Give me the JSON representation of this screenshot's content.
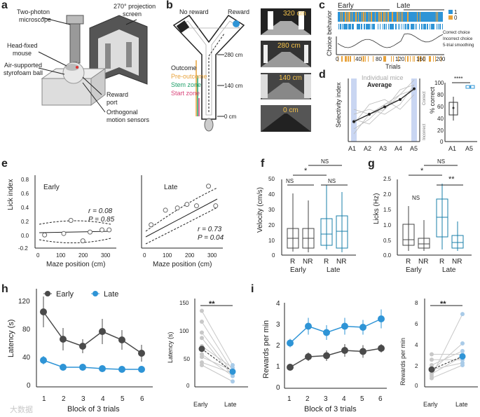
{
  "panel_labels": [
    "a",
    "b",
    "c",
    "d",
    "e",
    "f",
    "g",
    "h",
    "i"
  ],
  "colors": {
    "early": "#4a4a4a",
    "late": "#2e94d6",
    "boxblue": "#1a7fa8",
    "orange": "#e8a23a",
    "gray": "#bbbbbb",
    "blue_band": "#c9d6f2"
  },
  "panel_a": {
    "labels": [
      "Two-photon",
      "microscope",
      "270° projection",
      "screen",
      "Head-fixed",
      "mouse",
      "Air-supported",
      "styrofoam ball",
      "Reward",
      "port",
      "Orthogonal",
      "motion sensors"
    ]
  },
  "panel_b": {
    "no_reward": "No reward",
    "reward": "Reward",
    "zones": [
      {
        "label": "Outcome",
        "color": "#222222"
      },
      {
        "label": "Pre-outcome",
        "color": "#e8a23a"
      },
      {
        "label": "Stem zone",
        "color": "#22a06b"
      },
      {
        "label": "Start zone",
        "color": "#d9447a"
      }
    ],
    "distances": [
      "280 cm",
      "140 cm",
      "0 cm"
    ],
    "views": [
      "320 cm",
      "280 cm",
      "140 cm",
      "0 cm"
    ]
  },
  "panel_c": {
    "ylabel": "Choice behavior",
    "xlabel": "Trials",
    "phase_early": "Early",
    "phase_late": "Late",
    "legend_1": "1",
    "legend_0": "0",
    "legend_lines": [
      "Correct choice",
      "Incorrect choice",
      "5-trial smoothing"
    ],
    "xticks": [
      "0",
      "40",
      "80",
      "120",
      "160",
      "200"
    ]
  },
  "panel_d": {
    "ylabel": "Selectivity index",
    "xticks": [
      "A1",
      "A2",
      "A3",
      "A4",
      "A5"
    ],
    "legend_mice": "Individual mice",
    "legend_avg": "Average",
    "correct": "Correct",
    "incorrect": "Incorrect",
    "inset_ylabel": "% correct",
    "inset_yticks": [
      "100",
      "80",
      "60",
      "40",
      "20",
      "0"
    ],
    "inset_xticks": [
      "A1",
      "A5"
    ],
    "inset_sig": "****"
  },
  "panel_e": {
    "ylabel": "Lick index",
    "xlabel": "Maze position (cm)",
    "yticks": [
      "0.8",
      "0.6",
      "0.4",
      "0.2",
      "0.0",
      "-0.2"
    ],
    "xticks": [
      "0",
      "100",
      "200",
      "300"
    ],
    "early": {
      "title": "Early",
      "r": "r = 0.08",
      "p": "P = 0.85"
    },
    "late": {
      "title": "Late",
      "r": "r = 0.73",
      "p": "P = 0.04"
    }
  },
  "panel_f": {
    "ylabel": "Velocity (cm/s)",
    "yticks": [
      "50",
      "40",
      "30",
      "20",
      "10",
      "0"
    ],
    "groups": [
      "R",
      "NR",
      "R",
      "NR"
    ],
    "phase": [
      "Early",
      "Late"
    ],
    "sig": [
      "NS",
      "*",
      "NS",
      "NS"
    ]
  },
  "panel_g": {
    "ylabel": "Licks (Hz)",
    "yticks": [
      "2.5",
      "2.0",
      "1.5",
      "1.0",
      "0.5",
      "0.0"
    ],
    "groups": [
      "R",
      "NR",
      "R",
      "NR"
    ],
    "phase": [
      "Early",
      "Late"
    ],
    "sig": [
      "NS",
      "*",
      "NS",
      "**"
    ]
  },
  "panel_h": {
    "ylabel": "Latency (s)",
    "xlabel": "Block of 3 trials",
    "yticks": [
      "120",
      "80",
      "40",
      "0"
    ],
    "xticks": [
      "1",
      "2",
      "3",
      "4",
      "5",
      "6"
    ],
    "legend_early": "Early",
    "legend_late": "Late",
    "inset_ylabel": "Latency (s)",
    "inset_yticks": [
      "150",
      "100",
      "50",
      "0"
    ],
    "inset_xticks": [
      "Early",
      "Late"
    ],
    "inset_sig": "**"
  },
  "panel_i": {
    "ylabel": "Rewards per min",
    "xlabel": "Block of 3 trials",
    "yticks": [
      "4",
      "3",
      "2",
      "1",
      "0"
    ],
    "xticks": [
      "1",
      "2",
      "3",
      "4",
      "5",
      "6"
    ],
    "inset_ylabel": "Rewards per min",
    "inset_yticks": [
      "8",
      "6",
      "4",
      "2",
      "0"
    ],
    "inset_xticks": [
      "Early",
      "Late"
    ],
    "inset_sig": "**"
  },
  "watermark": "大数据",
  "chart_data": [
    {
      "type": "line",
      "panel": "d",
      "x": [
        "A1",
        "A2",
        "A3",
        "A4",
        "A5"
      ],
      "series": [
        {
          "name": "Average",
          "values": [
            -0.05,
            0.1,
            0.25,
            0.4,
            0.62
          ]
        }
      ],
      "ylabel": "Selectivity index"
    },
    {
      "type": "scatter",
      "panel": "e",
      "title": "Early",
      "xlabel": "Maze position (cm)",
      "ylabel": "Lick index",
      "x": [
        40,
        120,
        150,
        200,
        230,
        280,
        310
      ],
      "y": [
        -0.02,
        0.0,
        0.18,
        -0.1,
        0.02,
        0.05,
        0.05
      ],
      "xlim": [
        0,
        340
      ],
      "ylim": [
        -0.2,
        0.8
      ]
    },
    {
      "type": "scatter",
      "panel": "e",
      "title": "Late",
      "xlabel": "Maze position (cm)",
      "ylabel": "Lick index",
      "x": [
        40,
        100,
        150,
        190,
        230,
        280,
        310
      ],
      "y": [
        0.12,
        0.32,
        0.35,
        0.4,
        0.38,
        0.65,
        0.38
      ],
      "xlim": [
        0,
        340
      ],
      "ylim": [
        -0.2,
        0.8
      ]
    },
    {
      "type": "line",
      "panel": "h",
      "xlabel": "Block of 3 trials",
      "ylabel": "Latency (s)",
      "x": [
        1,
        2,
        3,
        4,
        5,
        6
      ],
      "series": [
        {
          "name": "Early",
          "values": [
            107,
            68,
            58,
            79,
            67,
            48
          ]
        },
        {
          "name": "Late",
          "values": [
            38,
            28,
            28,
            26,
            25,
            25
          ]
        }
      ],
      "ylim": [
        0,
        140
      ]
    },
    {
      "type": "line",
      "panel": "i",
      "xlabel": "Block of 3 trials",
      "ylabel": "Rewards per min",
      "x": [
        1,
        2,
        3,
        4,
        5,
        6
      ],
      "series": [
        {
          "name": "Early",
          "values": [
            1.0,
            1.5,
            1.55,
            1.8,
            1.75,
            1.9
          ]
        },
        {
          "name": "Late",
          "values": [
            2.15,
            2.95,
            2.65,
            2.95,
            2.9,
            3.3
          ]
        }
      ],
      "ylim": [
        0,
        4
      ]
    }
  ]
}
